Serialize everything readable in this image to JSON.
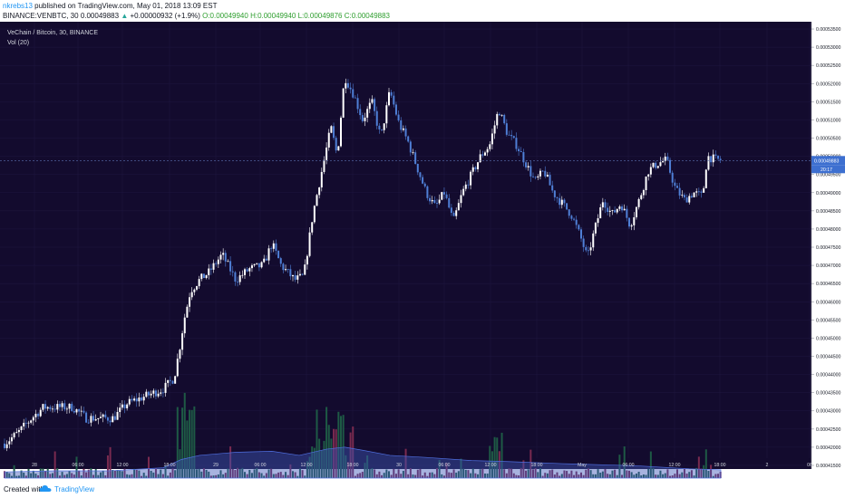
{
  "header": {
    "author": "nkrebs13",
    "published": "published on TradingView.com, May 01, 2018 13:09 EST",
    "symbol_line": "BINANCE:VENBTC, 30",
    "last": "0.00049883",
    "change": "+0.00000932 (+1.9%)",
    "ohlc_open": "O:0.00049940",
    "ohlc_high": "H:0.00049940",
    "ohlc_low": "L:0.00049876",
    "ohlc_close": "C:0.00049883"
  },
  "legend": {
    "title": "VeChain / Bitcoin, 30, BINANCE",
    "vol": "Vol (20)"
  },
  "footer": {
    "created_with": "Created with",
    "brand": "TradingView"
  },
  "colors": {
    "background": "#130b2e",
    "up_candle": "#ffffff",
    "down_candle": "#4f7fd6",
    "vol_up": "#1e5a45",
    "vol_down": "#7a2a4f",
    "vol_ma": "#3d56b8"
  },
  "chart_data": {
    "type": "candlestick",
    "y_axis_labels": [
      "0.00053500",
      "0.00053000",
      "0.00052500",
      "0.00052000",
      "0.00051500",
      "0.00051000",
      "0.00050500",
      "0.00050000",
      "0.00049500",
      "0.00049000",
      "0.00048500",
      "0.00048000",
      "0.00047500",
      "0.00047000",
      "0.00046500",
      "0.00046000",
      "0.00045500",
      "0.00045000",
      "0.00044500",
      "0.00044000",
      "0.00043500",
      "0.00043000",
      "0.00042500",
      "0.00042000",
      "0.00041500"
    ],
    "ylim": [
      0.000414,
      0.000537
    ],
    "x_tick_labels": [
      "28",
      "06:00",
      "12:00",
      "18:00",
      "29",
      "06:00",
      "12:00",
      "18:00",
      "30",
      "06:00",
      "12:00",
      "18:00",
      "May",
      "06:00",
      "12:00",
      "18:00",
      "2",
      "06"
    ],
    "last_price_label": "0.00049883",
    "countdown_label": "20:17",
    "price_path": [
      [
        0,
        0.00042
      ],
      [
        20,
        0.000424
      ],
      [
        35,
        0.000428
      ],
      [
        48,
        0.000431
      ],
      [
        60,
        0.000431
      ],
      [
        80,
        0.000431
      ],
      [
        95,
        0.000428
      ],
      [
        110,
        0.000428
      ],
      [
        125,
        0.000428
      ],
      [
        140,
        0.000432
      ],
      [
        160,
        0.000434
      ],
      [
        180,
        0.000436
      ],
      [
        192,
        0.000439
      ],
      [
        198,
        0.000447
      ],
      [
        203,
        0.000455
      ],
      [
        210,
        0.000463
      ],
      [
        220,
        0.000466
      ],
      [
        230,
        0.000468
      ],
      [
        245,
        0.000473
      ],
      [
        260,
        0.000466
      ],
      [
        275,
        0.000469
      ],
      [
        290,
        0.00047
      ],
      [
        300,
        0.000476
      ],
      [
        310,
        0.00047
      ],
      [
        325,
        0.000466
      ],
      [
        335,
        0.000467
      ],
      [
        345,
        0.000484
      ],
      [
        355,
        0.000496
      ],
      [
        365,
        0.000508
      ],
      [
        372,
        0.0005
      ],
      [
        380,
        0.000522
      ],
      [
        390,
        0.000517
      ],
      [
        400,
        0.00051
      ],
      [
        410,
        0.000515
      ],
      [
        420,
        0.000505
      ],
      [
        430,
        0.000518
      ],
      [
        440,
        0.000509
      ],
      [
        450,
        0.000504
      ],
      [
        460,
        0.000497
      ],
      [
        470,
        0.00049
      ],
      [
        480,
        0.000486
      ],
      [
        490,
        0.00049
      ],
      [
        500,
        0.000482
      ],
      [
        510,
        0.00049
      ],
      [
        520,
        0.000495
      ],
      [
        530,
        0.0005
      ],
      [
        540,
        0.000503
      ],
      [
        550,
        0.000513
      ],
      [
        560,
        0.000506
      ],
      [
        570,
        0.000503
      ],
      [
        580,
        0.000498
      ],
      [
        590,
        0.000493
      ],
      [
        600,
        0.000496
      ],
      [
        610,
        0.00049
      ],
      [
        620,
        0.000487
      ],
      [
        630,
        0.000484
      ],
      [
        640,
        0.000478
      ],
      [
        648,
        0.000472
      ],
      [
        655,
        0.000479
      ],
      [
        665,
        0.000488
      ],
      [
        675,
        0.000484
      ],
      [
        685,
        0.000487
      ],
      [
        695,
        0.000481
      ],
      [
        705,
        0.000488
      ],
      [
        715,
        0.000496
      ],
      [
        725,
        0.000498
      ],
      [
        735,
        0.000499
      ],
      [
        745,
        0.000491
      ],
      [
        755,
        0.000488
      ],
      [
        765,
        0.00049
      ],
      [
        775,
        0.000489
      ],
      [
        780,
        0.0005
      ],
      [
        790,
        0.000499
      ],
      [
        795,
        0.000499
      ]
    ],
    "volume_ma": [
      [
        5,
        0.06
      ],
      [
        60,
        0.07
      ],
      [
        120,
        0.07
      ],
      [
        180,
        0.1
      ],
      [
        200,
        0.18
      ],
      [
        220,
        0.22
      ],
      [
        260,
        0.25
      ],
      [
        300,
        0.26
      ],
      [
        330,
        0.22
      ],
      [
        360,
        0.28
      ],
      [
        380,
        0.3
      ],
      [
        400,
        0.27
      ],
      [
        430,
        0.22
      ],
      [
        470,
        0.2
      ],
      [
        520,
        0.17
      ],
      [
        560,
        0.16
      ],
      [
        620,
        0.14
      ],
      [
        660,
        0.13
      ],
      [
        700,
        0.12
      ],
      [
        760,
        0.09
      ],
      [
        795,
        0.08
      ]
    ]
  }
}
